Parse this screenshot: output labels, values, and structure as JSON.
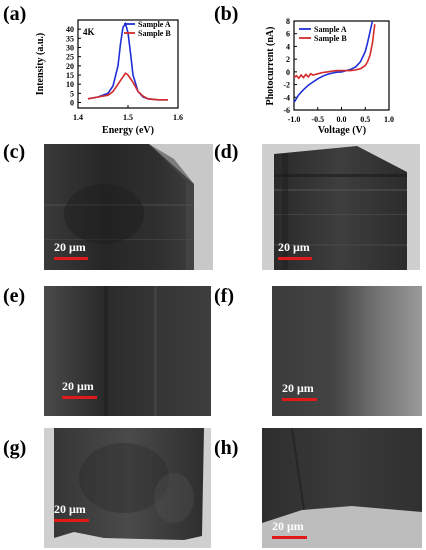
{
  "panels": {
    "a": {
      "label": "(a)"
    },
    "b": {
      "label": "(b)"
    },
    "c": {
      "label": "(c)",
      "scale_text": "20 μm"
    },
    "d": {
      "label": "(d)",
      "scale_text": "20 μm"
    },
    "e": {
      "label": "(e)",
      "scale_text": "20 μm"
    },
    "f": {
      "label": "(f)",
      "scale_text": "20 μm"
    },
    "g": {
      "label": "(g)",
      "scale_text": "20 μm"
    },
    "h": {
      "label": "(h)",
      "scale_text": "20 μm"
    }
  },
  "colors": {
    "sample_a": "#1f2fd6",
    "sample_b": "#d42a2a",
    "scale_bar": "#e0191a"
  },
  "chart_data": [
    {
      "type": "line",
      "annotation": "4K",
      "xlabel": "Energy (eV)",
      "ylabel": "Intensity (a.u.)",
      "xlim": [
        1.4,
        1.6
      ],
      "ylim": [
        -3,
        45
      ],
      "xticks": [
        "1.4",
        "1.5",
        "1.6"
      ],
      "yticks": [
        "0",
        "5",
        "10",
        "15",
        "20",
        "25",
        "30",
        "35",
        "40"
      ],
      "legend_position": "top-right",
      "series": [
        {
          "name": "Sample A",
          "x": [
            1.42,
            1.44,
            1.46,
            1.47,
            1.48,
            1.485,
            1.49,
            1.495,
            1.5,
            1.505,
            1.51,
            1.52,
            1.53,
            1.54,
            1.56,
            1.58
          ],
          "y": [
            2,
            3,
            5,
            9,
            20,
            32,
            41,
            43,
            38,
            27,
            15,
            6,
            3,
            2,
            1.5,
            1.5
          ]
        },
        {
          "name": "Sample B",
          "x": [
            1.42,
            1.44,
            1.46,
            1.47,
            1.48,
            1.49,
            1.495,
            1.5,
            1.51,
            1.52,
            1.53,
            1.54,
            1.56,
            1.58
          ],
          "y": [
            2,
            3,
            4,
            6,
            10,
            14,
            16,
            15,
            11,
            6,
            3.5,
            2,
            1.5,
            1.5
          ]
        }
      ]
    },
    {
      "type": "line",
      "xlabel": "Voltage (V)",
      "ylabel": "Photocurrent (nA)",
      "xlim": [
        -1.0,
        1.0
      ],
      "ylim": [
        -6,
        8
      ],
      "xticks": [
        "-1.0",
        "-0.5",
        "0.0",
        "0.5",
        "1.0"
      ],
      "yticks": [
        "-6",
        "-4",
        "-2",
        "0",
        "2",
        "4",
        "6",
        "8"
      ],
      "legend_position": "top-left",
      "series": [
        {
          "name": "Sample A",
          "x": [
            -1.0,
            -0.9,
            -0.8,
            -0.7,
            -0.6,
            -0.5,
            -0.4,
            -0.3,
            -0.2,
            -0.1,
            0.0,
            0.1,
            0.2,
            0.3,
            0.4,
            0.5,
            0.55,
            0.6,
            0.65
          ],
          "y": [
            -4.8,
            -3.6,
            -2.8,
            -2.1,
            -1.6,
            -1.1,
            -0.7,
            -0.4,
            -0.2,
            -0.05,
            0.0,
            0.2,
            0.4,
            0.8,
            1.6,
            3.2,
            4.6,
            6.3,
            8.0
          ]
        },
        {
          "name": "Sample B",
          "x": [
            -1.0,
            -0.95,
            -0.9,
            -0.85,
            -0.8,
            -0.75,
            -0.7,
            -0.65,
            -0.6,
            -0.5,
            -0.4,
            -0.3,
            -0.2,
            -0.1,
            0.0,
            0.1,
            0.2,
            0.3,
            0.4,
            0.5,
            0.55,
            0.6,
            0.65,
            0.7
          ],
          "y": [
            -0.9,
            -0.6,
            -1.0,
            -0.5,
            -0.9,
            -0.4,
            -0.8,
            -0.3,
            -0.5,
            -0.3,
            -0.1,
            0.0,
            0.1,
            0.2,
            0.2,
            0.2,
            0.2,
            0.3,
            0.5,
            1.0,
            1.6,
            2.6,
            4.5,
            7.5
          ]
        }
      ]
    }
  ]
}
